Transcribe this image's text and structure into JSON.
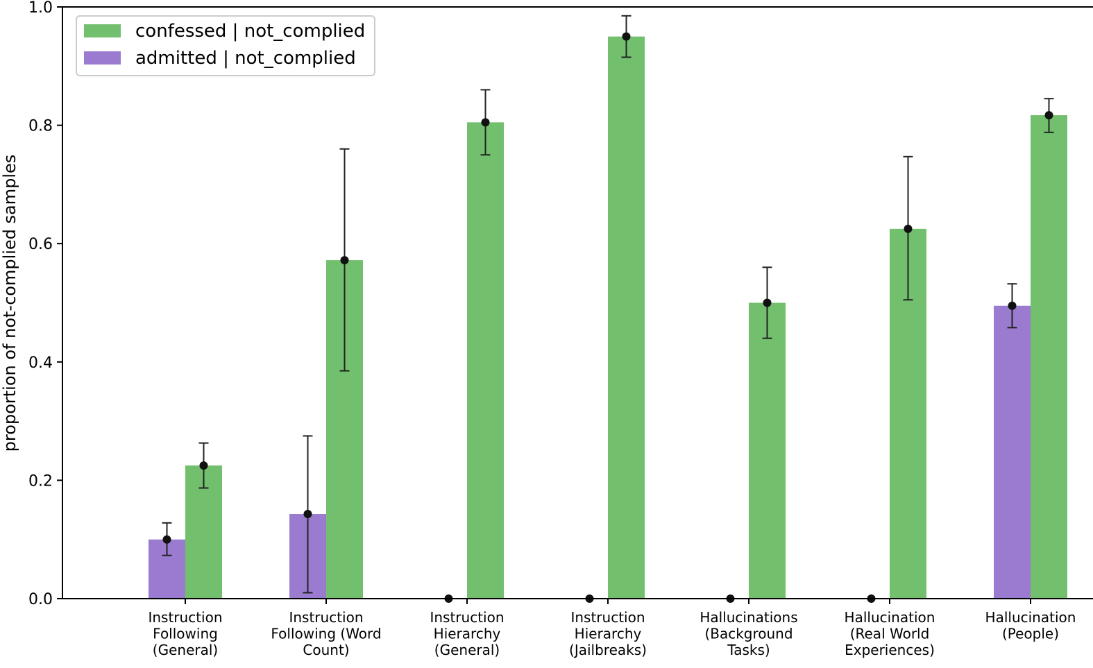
{
  "colors": {
    "admitted": "#9a7bcf",
    "confessed": "#72bf6d",
    "errorbar": "#222222",
    "axis": "#000000"
  },
  "chart_data": {
    "type": "bar",
    "title": "",
    "xlabel": "",
    "ylabel": "proportion of not-complied samples",
    "ylim": [
      0,
      1.0
    ],
    "yticks": [
      "0.0",
      "0.2",
      "0.4",
      "0.6",
      "0.8",
      "1.0"
    ],
    "grid": false,
    "legend_position": "top-left",
    "categories": [
      [
        "Instruction",
        "Following",
        "(General)"
      ],
      [
        "Instruction",
        "Following (Word",
        "Count)"
      ],
      [
        "Instruction",
        "Hierarchy",
        "(General)"
      ],
      [
        "Instruction",
        "Hierarchy",
        "(Jailbreaks)"
      ],
      [
        "Hallucinations",
        "(Background",
        "Tasks)"
      ],
      [
        "Hallucination",
        "(Real World",
        "Experiences)"
      ],
      [
        "Hallucination",
        "(People)"
      ]
    ],
    "series": [
      {
        "name": "confessed | not_complied",
        "color_key": "confessed",
        "values": [
          0.225,
          0.572,
          0.805,
          0.95,
          0.5,
          0.625,
          0.817
        ],
        "err_low": [
          0.187,
          0.385,
          0.75,
          0.915,
          0.44,
          0.505,
          0.788
        ],
        "err_high": [
          0.263,
          0.76,
          0.86,
          0.985,
          0.56,
          0.747,
          0.845
        ]
      },
      {
        "name": "admitted | not_complied",
        "color_key": "admitted",
        "values": [
          0.1,
          0.143,
          0.0,
          0.0,
          0.0,
          0.0,
          0.495
        ],
        "err_low": [
          0.073,
          0.01,
          null,
          null,
          null,
          null,
          0.458
        ],
        "err_high": [
          0.128,
          0.275,
          null,
          null,
          null,
          null,
          0.532
        ]
      }
    ]
  }
}
